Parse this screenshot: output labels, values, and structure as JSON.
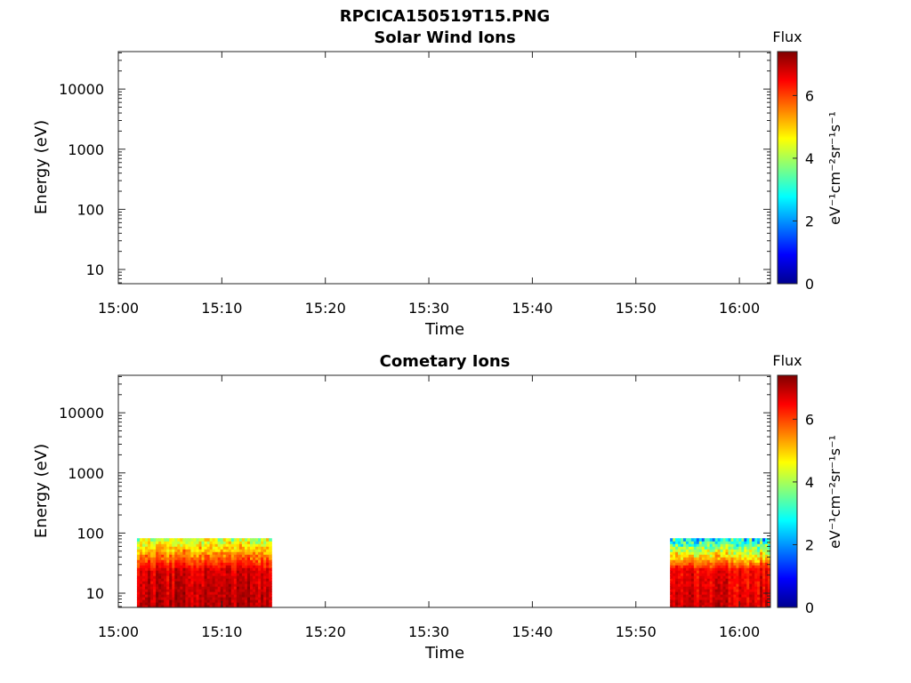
{
  "figure": {
    "filename": "RPCICA150519T15.PNG"
  },
  "chart_data": [
    {
      "type": "heatmap",
      "title": "Solar Wind Ions",
      "xlabel": "Time",
      "ylabel": "Energy (eV)",
      "y_scale": "log",
      "x_ticks": [
        "15:00",
        "15:10",
        "15:20",
        "15:30",
        "15:40",
        "15:50",
        "16:00"
      ],
      "x_range_minutes": [
        0,
        63
      ],
      "y_ticks": [
        10,
        100,
        1000,
        10000
      ],
      "y_range": [
        5.8,
        42000
      ],
      "colorbar": {
        "title": "Flux",
        "label": "eV⁻¹cm⁻²sr⁻¹s⁻¹",
        "ticks": [
          0,
          2,
          4,
          6
        ],
        "range": [
          0,
          7.4
        ],
        "colormap": "jet"
      },
      "data_blocks": []
    },
    {
      "type": "heatmap",
      "title": "Cometary Ions",
      "xlabel": "Time",
      "ylabel": "Energy (eV)",
      "y_scale": "log",
      "x_ticks": [
        "15:00",
        "15:10",
        "15:20",
        "15:30",
        "15:40",
        "15:50",
        "16:00"
      ],
      "x_range_minutes": [
        0,
        63
      ],
      "y_ticks": [
        10,
        100,
        1000,
        10000
      ],
      "y_range": [
        5.8,
        42000
      ],
      "colorbar": {
        "title": "Flux",
        "label": "eV⁻¹cm⁻²sr⁻¹s⁻¹",
        "ticks": [
          0,
          2,
          4,
          6
        ],
        "range": [
          0,
          7.4
        ],
        "colormap": "jet"
      },
      "data_blocks": [
        {
          "x_start_min": 1.8,
          "x_end_min": 14.8,
          "energy_min": 5.8,
          "energy_max": 82,
          "flux_low": 6.4,
          "flux_high": 7.0,
          "edge_flux": 4.6
        },
        {
          "x_start_min": 53.3,
          "x_end_min": 63.0,
          "energy_min": 5.8,
          "energy_max": 82,
          "flux_low": 6.2,
          "flux_high": 6.8,
          "edge_flux": 3.0
        }
      ]
    }
  ]
}
